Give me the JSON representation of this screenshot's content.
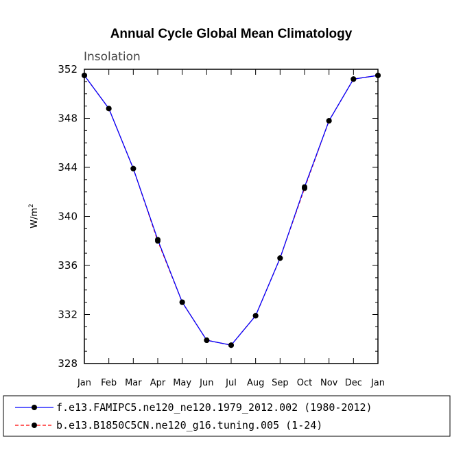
{
  "chart_data": {
    "type": "line",
    "title": "Annual Cycle Global Mean Climatology",
    "subtitle": "Insolation",
    "ylabel": "W/m",
    "ylabel_sup": "2",
    "xlabel": "",
    "ylim": [
      328,
      352
    ],
    "yticks": [
      328,
      332,
      336,
      340,
      344,
      348,
      352
    ],
    "categories": [
      "Jan",
      "Feb",
      "Mar",
      "Apr",
      "May",
      "Jun",
      "Jul",
      "Aug",
      "Sep",
      "Oct",
      "Nov",
      "Dec",
      "Jan"
    ],
    "series": [
      {
        "name": "f.e13.FAMIPC5.ne120_ne120.1979_2012.002 (1980-2012)",
        "color": "#0000ff",
        "dash": "solid",
        "values": [
          351.5,
          348.8,
          343.9,
          338.1,
          333.0,
          329.9,
          329.5,
          331.9,
          336.6,
          342.4,
          347.8,
          351.2,
          351.5
        ]
      },
      {
        "name": "b.e13.B1850C5CN.ne120_g16.tuning.005 (1-24)",
        "color": "#ff0000",
        "dash": "dashed",
        "values": [
          351.5,
          348.8,
          343.9,
          338.0,
          333.0,
          329.9,
          329.5,
          331.9,
          336.6,
          342.3,
          347.8,
          351.2,
          351.5
        ]
      }
    ],
    "legend_position": "bottom"
  }
}
